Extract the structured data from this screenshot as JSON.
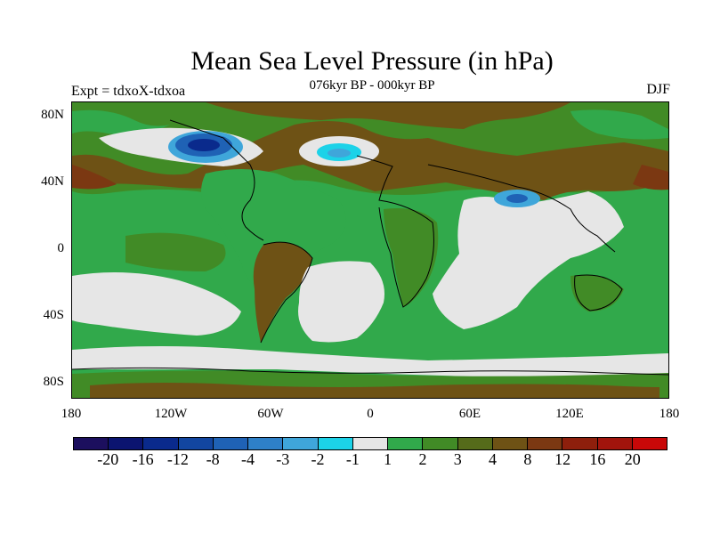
{
  "title": "Mean Sea Level Pressure (in hPa)",
  "subtitle": "076kyr BP - 000kyr BP",
  "left_label": "Expt = tdxoX-tdxoa",
  "right_label": "DJF",
  "lat_ticks": [
    "80N",
    "40N",
    "0",
    "40S",
    "80S"
  ],
  "lon_ticks": [
    "180",
    "120W",
    "60W",
    "0",
    "60E",
    "120E",
    "180"
  ],
  "colorbar": {
    "labels": [
      "-20",
      "-16",
      "-12",
      "-8",
      "-4",
      "-3",
      "-2",
      "-1",
      "1",
      "2",
      "3",
      "4",
      "8",
      "12",
      "16",
      "20"
    ],
    "colors": [
      "#1c0f5e",
      "#0b1470",
      "#0a2a8c",
      "#1246a0",
      "#1f62b5",
      "#2e80c8",
      "#3fa6da",
      "#1cd2e8",
      "#e6e6e6",
      "#31a94b",
      "#418b26",
      "#556b1a",
      "#6e5215",
      "#7b3812",
      "#8e1f0c",
      "#a1140c",
      "#c90808"
    ]
  },
  "map": {
    "fill_colors": {
      "green": "#31a94b",
      "olive": "#418b26",
      "brown": "#6e5215",
      "grey": "#e6e6e6",
      "dark_brown": "#7b3812",
      "light_blue": "#3fa6da",
      "cyan": "#1cd2e8",
      "blue": "#1f62b5",
      "dark_blue": "#0a2a8c"
    }
  }
}
